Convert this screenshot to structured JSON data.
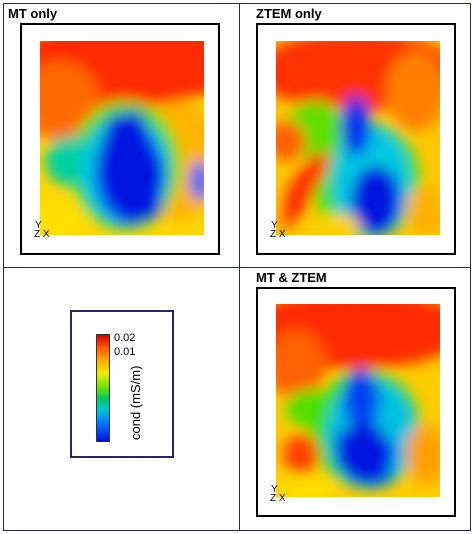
{
  "panels": [
    {
      "title": "MT only",
      "axes": {
        "y": "Y",
        "z": "Z",
        "x": "X"
      }
    },
    {
      "title": "ZTEM only",
      "axes": {
        "y": "Y",
        "z": "Z",
        "x": "X"
      }
    },
    {
      "title": "MT & ZTEM",
      "axes": {
        "y": "Y",
        "z": "Z",
        "x": "X"
      }
    }
  ],
  "legend": {
    "label": "cond (mS/m)",
    "ticks": [
      "0.02",
      "0.01"
    ]
  },
  "colors": {
    "border": "#1f2a6b",
    "high": "#e00000",
    "mid": "#7fe000",
    "low": "#0010e0"
  }
}
